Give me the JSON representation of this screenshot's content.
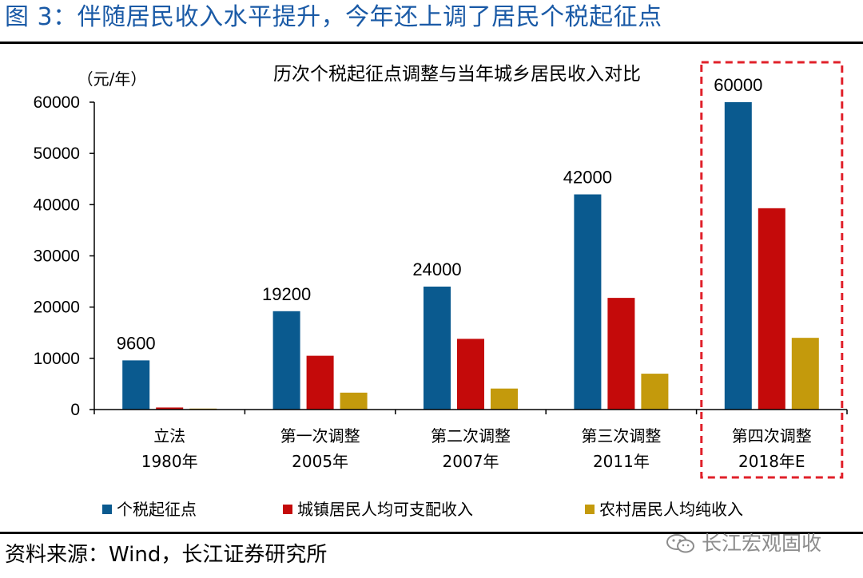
{
  "figure": {
    "title": "图 3：伴随居民收入水平提升，今年还上调了居民个税起征点",
    "source": "资料来源：Wind，长江证券研究所",
    "watermark": "长江宏观固收"
  },
  "colors": {
    "title_blue": "#1a5aa6",
    "highlight_box": "#e0202a"
  },
  "chart_data": {
    "type": "bar",
    "title": "历次个税起征点调整与当年城乡居民收入对比",
    "ylabel": "（元/年）",
    "xlabel": "",
    "ylim": [
      0,
      60000
    ],
    "yticks": [
      0,
      10000,
      20000,
      30000,
      40000,
      50000,
      60000
    ],
    "categories": [
      [
        "立法",
        "1980年"
      ],
      [
        "第一次调整",
        "2005年"
      ],
      [
        "第二次调整",
        "2007年"
      ],
      [
        "第三次调整",
        "2011年"
      ],
      [
        "第四次调整",
        "2018年E"
      ]
    ],
    "series": [
      {
        "name": "个税起征点",
        "color": "#0a5a8f",
        "values": [
          9600,
          19200,
          24000,
          42000,
          60000
        ]
      },
      {
        "name": "城镇居民人均可支配收入",
        "color": "#c40a0a",
        "values": [
          400,
          10500,
          13800,
          21800,
          39300
        ]
      },
      {
        "name": "农村居民人均纯收入",
        "color": "#c49a0c",
        "values": [
          190,
          3300,
          4100,
          7000,
          14000
        ]
      }
    ],
    "data_labels": [
      "9600",
      "19200",
      "24000",
      "42000",
      "60000"
    ],
    "highlight_category_index": 4,
    "grid": false,
    "legend_position": "bottom"
  }
}
